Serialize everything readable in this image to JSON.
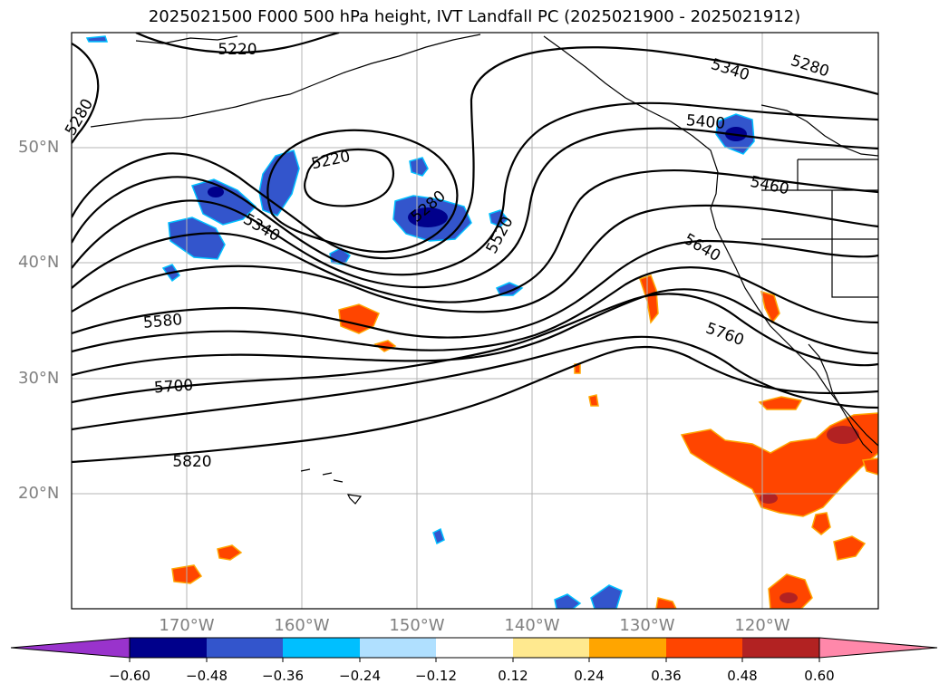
{
  "title": "2025021500 F000 500 hPa height, IVT Landfall PC (2025021900 - 2025021912)",
  "lat_labels": [
    "50°N",
    "40°N",
    "30°N",
    "20°N"
  ],
  "lon_labels": [
    "170°W",
    "160°W",
    "150°W",
    "140°W",
    "130°W",
    "120°W"
  ],
  "height_contour_labels": [
    "5220",
    "5280",
    "5340",
    "5400",
    "5460",
    "5520",
    "5580",
    "5640",
    "5700",
    "5760",
    "5820"
  ],
  "colorbar": {
    "ticks": [
      "−0.60",
      "−0.48",
      "−0.36",
      "−0.24",
      "−0.12",
      "0.12",
      "0.24",
      "0.36",
      "0.48",
      "0.60"
    ],
    "colors": [
      "#9933cc",
      "#00008b",
      "#3355cc",
      "#00bfff",
      "#b0e0ff",
      "#ffffff",
      "#ffe98f",
      "#ffa500",
      "#ff4500",
      "#b22222",
      "#ff88aa"
    ]
  },
  "map": {
    "projection": "equirectangular",
    "extent_lon": [
      -180,
      -110
    ],
    "extent_lat": [
      10,
      60
    ],
    "gridlines": true,
    "field_contours": "500 hPa height (m)",
    "shading": "IVT Landfall PC"
  }
}
